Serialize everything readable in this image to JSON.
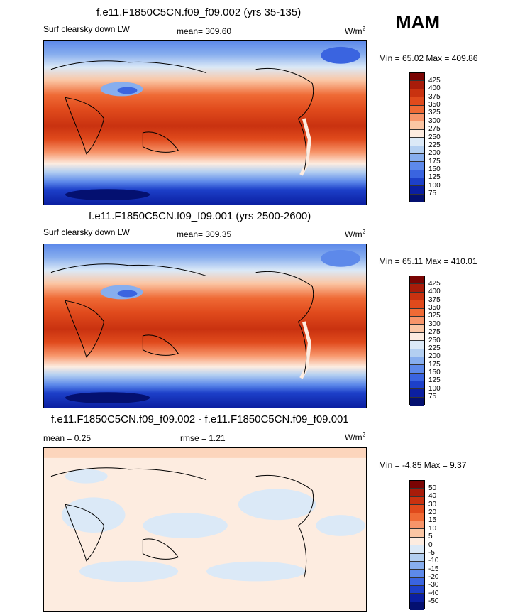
{
  "season": "MAM",
  "units_base": "W/m",
  "units_exp": "2",
  "panels": [
    {
      "title": "f.e11.F1850C5CN.f09_f09.002 (yrs 35-135)",
      "left_label": "Surf clearsky down LW",
      "stat_label": "mean= 309.60",
      "minmax": "Min =  65.02 Max = 409.86",
      "colorbar_ticks": [
        "425",
        "400",
        "375",
        "350",
        "325",
        "300",
        "275",
        "250",
        "225",
        "200",
        "175",
        "150",
        "125",
        "100",
        "75"
      ],
      "colorbar_colors": [
        "#7a0403",
        "#a81c0a",
        "#c93210",
        "#e04a1c",
        "#ef6a35",
        "#f7956a",
        "#fbc6a4",
        "#fdece0",
        "#dbe9f7",
        "#b3cff1",
        "#87aeee",
        "#5d89ea",
        "#3a64e0",
        "#1d40c9",
        "#0b1fa1",
        "#041070"
      ]
    },
    {
      "title": "f.e11.F1850C5CN.f09_f09.001 (yrs 2500-2600)",
      "left_label": "Surf clearsky down LW",
      "stat_label": "mean= 309.35",
      "minmax": "Min =  65.11 Max = 410.01",
      "colorbar_ticks": [
        "425",
        "400",
        "375",
        "350",
        "325",
        "300",
        "275",
        "250",
        "225",
        "200",
        "175",
        "150",
        "125",
        "100",
        "75"
      ],
      "colorbar_colors": [
        "#7a0403",
        "#a81c0a",
        "#c93210",
        "#e04a1c",
        "#ef6a35",
        "#f7956a",
        "#fbc6a4",
        "#fdece0",
        "#dbe9f7",
        "#b3cff1",
        "#87aeee",
        "#5d89ea",
        "#3a64e0",
        "#1d40c9",
        "#0b1fa1",
        "#041070"
      ]
    },
    {
      "title": "f.e11.F1850C5CN.f09_f09.002 - f.e11.F1850C5CN.f09_f09.001",
      "left_label": "mean =   0.25",
      "stat_label": "rmse =   1.21",
      "minmax": "Min =  -4.85 Max =   9.37",
      "colorbar_ticks": [
        "50",
        "40",
        "30",
        "20",
        "15",
        "10",
        "5",
        "0",
        "-5",
        "-10",
        "-15",
        "-20",
        "-30",
        "-40",
        "-50"
      ],
      "colorbar_colors": [
        "#7a0403",
        "#a81c0a",
        "#c93210",
        "#e04a1c",
        "#ef6a35",
        "#f7956a",
        "#fbc6a4",
        "#fdece0",
        "#dbe9f7",
        "#b3cff1",
        "#87aeee",
        "#5d89ea",
        "#3a64e0",
        "#1d40c9",
        "#0b1fa1",
        "#041070"
      ]
    }
  ],
  "chart_data": [
    {
      "type": "heatmap",
      "title": "f.e11.F1850C5CN.f09_f09.002 (yrs 35-135)",
      "variable": "Surf clearsky down LW",
      "units": "W/m2",
      "mean": 309.6,
      "min": 65.02,
      "max": 409.86,
      "contour_levels": [
        75,
        100,
        125,
        150,
        175,
        200,
        225,
        250,
        275,
        300,
        325,
        350,
        375,
        400,
        425
      ]
    },
    {
      "type": "heatmap",
      "title": "f.e11.F1850C5CN.f09_f09.001 (yrs 2500-2600)",
      "variable": "Surf clearsky down LW",
      "units": "W/m2",
      "mean": 309.35,
      "min": 65.11,
      "max": 410.01,
      "contour_levels": [
        75,
        100,
        125,
        150,
        175,
        200,
        225,
        250,
        275,
        300,
        325,
        350,
        375,
        400,
        425
      ]
    },
    {
      "type": "heatmap",
      "title": "f.e11.F1850C5CN.f09_f09.002 - f.e11.F1850C5CN.f09_f09.001",
      "units": "W/m2",
      "mean": 0.25,
      "rmse": 1.21,
      "min": -4.85,
      "max": 9.37,
      "contour_levels": [
        -50,
        -40,
        -30,
        -20,
        -15,
        -10,
        -5,
        0,
        5,
        10,
        15,
        20,
        30,
        40,
        50
      ]
    }
  ]
}
